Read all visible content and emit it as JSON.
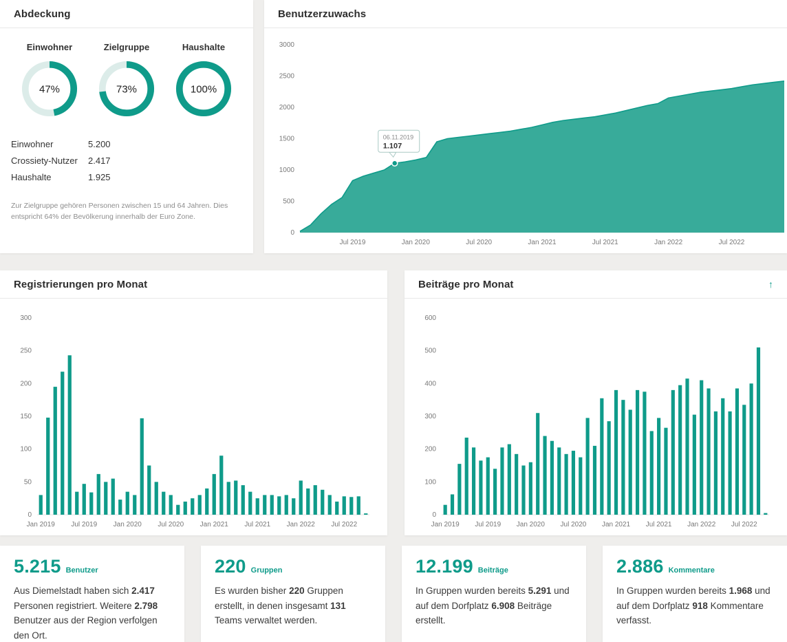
{
  "colors": {
    "accent": "#0f9b8a",
    "area_fill": "#38ab9a",
    "donut_track": "#dcece9"
  },
  "coverage": {
    "title": "Abdeckung",
    "donuts": [
      {
        "label": "Einwohner",
        "percent": 47,
        "text": "47%"
      },
      {
        "label": "Zielgruppe",
        "percent": 73,
        "text": "73%"
      },
      {
        "label": "Haushalte",
        "percent": 100,
        "text": "100%"
      }
    ],
    "stats": [
      {
        "label": "Einwohner",
        "value": "5.200"
      },
      {
        "label": "Crossiety-Nutzer",
        "value": "2.417"
      },
      {
        "label": "Haushalte",
        "value": "1.925"
      }
    ],
    "footnote": "Zur Zielgruppe gehören Personen zwischen 15 und 64 Jahren. Dies entspricht 64% der Bevölkerung innerhalb der Euro Zone."
  },
  "growth": {
    "title": "Benutzerzuwachs"
  },
  "registrations": {
    "title": "Registrierungen pro Monat"
  },
  "posts": {
    "title": "Beiträge pro Monat",
    "arrow_icon": "↑"
  },
  "chart_data": [
    {
      "id": "growth",
      "type": "area",
      "title": "Benutzerzuwachs",
      "x_start": "Feb 2019",
      "x_ticks": [
        "Jul 2019",
        "Jan 2020",
        "Jul 2020",
        "Jan 2021",
        "Jul 2021",
        "Jan 2022",
        "Jul 2022"
      ],
      "x_tick_indices": [
        5,
        11,
        17,
        23,
        29,
        35,
        41
      ],
      "values": [
        20,
        120,
        300,
        450,
        560,
        830,
        900,
        950,
        1000,
        1107,
        1130,
        1160,
        1200,
        1450,
        1500,
        1520,
        1540,
        1560,
        1580,
        1600,
        1620,
        1650,
        1680,
        1720,
        1760,
        1790,
        1810,
        1830,
        1850,
        1880,
        1910,
        1950,
        1990,
        2030,
        2060,
        2150,
        2180,
        2210,
        2240,
        2260,
        2280,
        2300,
        2330,
        2360,
        2380,
        2400,
        2420
      ],
      "ylim": [
        0,
        3000
      ],
      "y_ticks": [
        0,
        500,
        1000,
        1500,
        2000,
        2500,
        3000
      ],
      "grid": false,
      "legend": false,
      "tooltip": {
        "date": "06.11.2019",
        "value": "1.107",
        "index": 9
      }
    },
    {
      "id": "registrations",
      "type": "bar",
      "title": "Registrierungen pro Monat",
      "x_start": "Jan 2019",
      "x_ticks": [
        "Jan 2019",
        "Jul 2019",
        "Jan 2020",
        "Jul 2020",
        "Jan 2021",
        "Jul 2021",
        "Jan 2022",
        "Jul 2022"
      ],
      "x_tick_indices": [
        0,
        6,
        12,
        18,
        24,
        30,
        36,
        42
      ],
      "values": [
        30,
        148,
        195,
        218,
        243,
        35,
        47,
        34,
        62,
        50,
        55,
        23,
        35,
        30,
        147,
        75,
        50,
        35,
        30,
        15,
        20,
        25,
        30,
        40,
        62,
        90,
        50,
        52,
        45,
        35,
        25,
        30,
        30,
        28,
        30,
        25,
        52,
        40,
        45,
        38,
        30,
        20,
        28,
        27,
        28,
        2
      ],
      "ylim": [
        0,
        300
      ],
      "y_ticks": [
        0,
        50,
        100,
        150,
        200,
        250,
        300
      ],
      "grid": false,
      "legend": false
    },
    {
      "id": "posts",
      "type": "bar",
      "title": "Beiträge pro Monat",
      "x_start": "Jan 2019",
      "x_ticks": [
        "Jan 2019",
        "Jul 2019",
        "Jan 2020",
        "Jul 2020",
        "Jan 2021",
        "Jul 2021",
        "Jan 2022",
        "Jul 2022"
      ],
      "x_tick_indices": [
        0,
        6,
        12,
        18,
        24,
        30,
        36,
        42
      ],
      "values": [
        30,
        62,
        155,
        235,
        205,
        165,
        175,
        140,
        205,
        215,
        185,
        150,
        160,
        310,
        240,
        225,
        205,
        185,
        195,
        175,
        295,
        210,
        355,
        285,
        380,
        350,
        320,
        380,
        375,
        255,
        295,
        265,
        380,
        395,
        415,
        305,
        410,
        385,
        315,
        355,
        315,
        385,
        335,
        400,
        510,
        5
      ],
      "ylim": [
        0,
        600
      ],
      "y_ticks": [
        0,
        100,
        200,
        300,
        400,
        500,
        600
      ],
      "grid": false,
      "legend": false
    }
  ],
  "stat_cards": [
    {
      "value": "5.215",
      "label": "Benutzer",
      "text": [
        {
          "t": "Aus Diemelstadt haben sich "
        },
        {
          "t": "2.417",
          "b": 1
        },
        {
          "t": " Personen registriert. Weitere "
        },
        {
          "t": "2.798",
          "b": 1
        },
        {
          "t": " Benutzer aus der Region verfolgen den Ort."
        }
      ]
    },
    {
      "value": "220",
      "label": "Gruppen",
      "text": [
        {
          "t": "Es wurden bisher "
        },
        {
          "t": "220",
          "b": 1
        },
        {
          "t": " Gruppen erstellt, in denen insgesamt "
        },
        {
          "t": "131",
          "b": 1
        },
        {
          "t": " Teams verwaltet werden."
        }
      ]
    },
    {
      "value": "12.199",
      "label": "Beiträge",
      "text": [
        {
          "t": "In Gruppen wurden bereits "
        },
        {
          "t": "5.291",
          "b": 1
        },
        {
          "t": " und auf dem Dorfplatz "
        },
        {
          "t": "6.908",
          "b": 1
        },
        {
          "t": " Beiträge erstellt."
        }
      ]
    },
    {
      "value": "2.886",
      "label": "Kommentare",
      "text": [
        {
          "t": "In Gruppen wurden bereits "
        },
        {
          "t": "1.968",
          "b": 1
        },
        {
          "t": " und auf dem Dorfplatz "
        },
        {
          "t": "918",
          "b": 1
        },
        {
          "t": " Kommentare verfasst."
        }
      ]
    }
  ]
}
